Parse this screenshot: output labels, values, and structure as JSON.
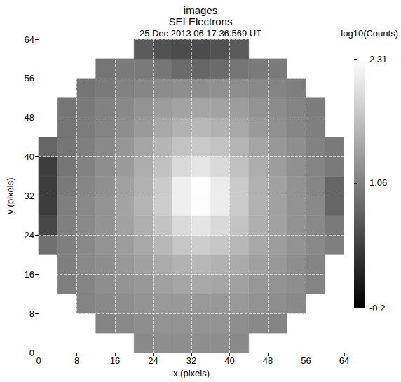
{
  "chart_data": {
    "type": "heatmap",
    "title": "SEI Electrons",
    "subtitle": "25 Dec 2013 06:17:36.569 UT",
    "annotations": [
      "images"
    ],
    "xlabel": "x (pixels)",
    "ylabel": "y (pixels)",
    "xlim": [
      0,
      64
    ],
    "ylim": [
      0,
      64
    ],
    "xticks": [
      0,
      8,
      16,
      24,
      32,
      40,
      48,
      56,
      64
    ],
    "yticks": [
      0,
      8,
      16,
      24,
      32,
      40,
      48,
      56,
      64
    ],
    "grid": true,
    "x_edges": [
      0,
      4,
      8,
      12,
      16,
      20,
      24,
      28,
      32,
      36,
      40,
      44,
      48,
      52,
      56,
      60,
      64
    ],
    "y_edges": [
      0,
      4,
      8,
      12,
      16,
      20,
      24,
      28,
      32,
      36,
      40,
      44,
      48,
      52,
      56,
      60,
      64
    ],
    "cells": [
      [
        null,
        null,
        null,
        null,
        null,
        1.15,
        1.2,
        1.2,
        1.2,
        1.2,
        1.15,
        null,
        null,
        null,
        null,
        null
      ],
      [
        null,
        null,
        null,
        1.1,
        1.15,
        1.2,
        1.25,
        1.25,
        1.25,
        1.25,
        1.2,
        1.15,
        1.1,
        null,
        null,
        null
      ],
      [
        null,
        null,
        1.1,
        1.15,
        1.2,
        1.25,
        1.3,
        1.3,
        1.3,
        1.3,
        1.3,
        1.25,
        1.2,
        1.15,
        null,
        null
      ],
      [
        null,
        1.05,
        1.1,
        1.2,
        1.25,
        1.3,
        1.38,
        1.42,
        1.45,
        1.42,
        1.38,
        1.3,
        1.25,
        1.2,
        1.1,
        null
      ],
      [
        null,
        1.05,
        1.15,
        1.2,
        1.3,
        1.38,
        1.48,
        1.55,
        1.6,
        1.55,
        1.48,
        1.38,
        1.3,
        1.2,
        1.1,
        null
      ],
      [
        0.9,
        1.05,
        1.15,
        1.25,
        1.35,
        1.45,
        1.6,
        1.75,
        1.82,
        1.75,
        1.6,
        1.45,
        1.35,
        1.25,
        1.15,
        1.05
      ],
      [
        0.5,
        1.05,
        1.15,
        1.25,
        1.38,
        1.52,
        1.72,
        1.95,
        2.05,
        1.95,
        1.72,
        1.52,
        1.38,
        1.25,
        1.15,
        1.0
      ],
      [
        0.4,
        1.05,
        1.15,
        1.25,
        1.4,
        1.58,
        1.82,
        2.15,
        2.28,
        2.12,
        1.8,
        1.55,
        1.38,
        1.25,
        1.15,
        0.8
      ],
      [
        0.4,
        1.0,
        1.12,
        1.22,
        1.38,
        1.55,
        1.8,
        2.15,
        2.3,
        2.12,
        1.8,
        1.55,
        1.38,
        1.25,
        1.12,
        0.8
      ],
      [
        0.4,
        0.95,
        1.08,
        1.2,
        1.32,
        1.5,
        1.7,
        1.95,
        2.05,
        1.95,
        1.7,
        1.5,
        1.35,
        1.22,
        1.1,
        1.0
      ],
      [
        0.8,
        0.95,
        1.05,
        1.15,
        1.28,
        1.42,
        1.58,
        1.72,
        1.78,
        1.72,
        1.58,
        1.42,
        1.3,
        1.2,
        1.08,
        1.0
      ],
      [
        null,
        0.95,
        1.02,
        1.1,
        1.2,
        1.32,
        1.45,
        1.55,
        1.6,
        1.55,
        1.45,
        1.32,
        1.22,
        1.12,
        1.05,
        null
      ],
      [
        null,
        0.95,
        1.0,
        1.08,
        1.15,
        1.25,
        1.35,
        1.4,
        1.42,
        1.4,
        1.35,
        1.25,
        1.18,
        1.1,
        1.02,
        null
      ],
      [
        null,
        null,
        0.95,
        1.0,
        1.08,
        1.12,
        1.18,
        1.2,
        1.2,
        1.22,
        1.2,
        1.15,
        1.1,
        1.05,
        null,
        null
      ],
      [
        null,
        null,
        null,
        0.95,
        1.0,
        1.0,
        0.95,
        0.85,
        0.8,
        0.85,
        0.95,
        1.0,
        1.0,
        null,
        null,
        null
      ],
      [
        null,
        null,
        null,
        null,
        null,
        0.7,
        0.6,
        0.55,
        0.55,
        0.6,
        0.7,
        null,
        null,
        null,
        null,
        null
      ]
    ],
    "colorbar": {
      "label": "log10(Counts)",
      "range": [
        -0.2,
        2.31
      ],
      "ticks": [
        -0.2,
        1.06,
        2.31
      ]
    }
  }
}
